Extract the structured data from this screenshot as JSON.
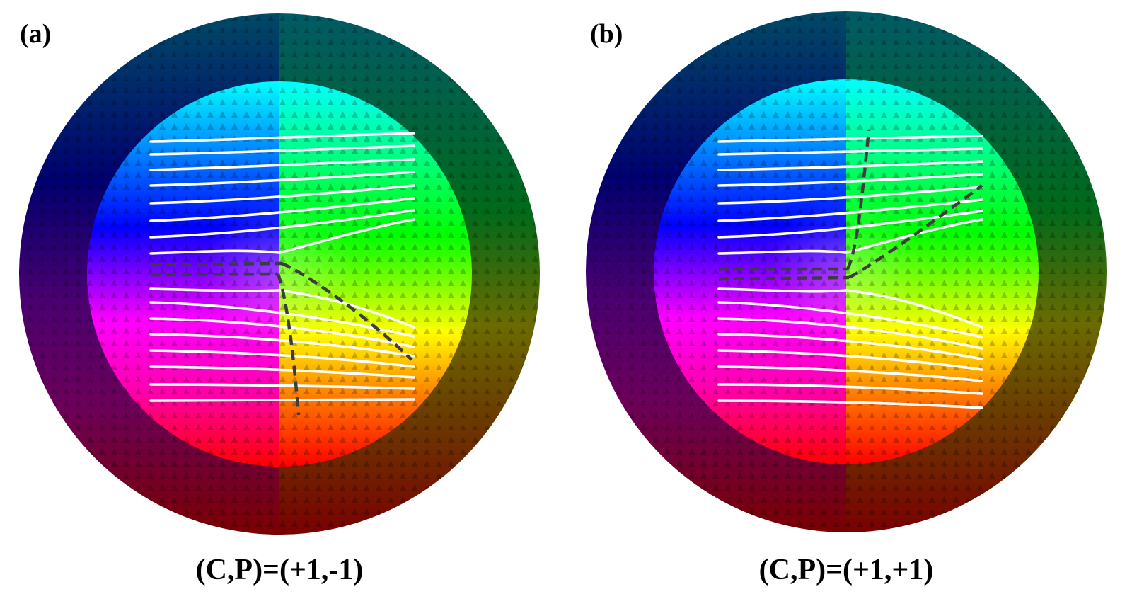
{
  "panels": [
    {
      "id": "a",
      "label": "(a)",
      "caption": "(C,P)=(+1,-1)",
      "polarity": -1
    },
    {
      "id": "b",
      "label": "(b)",
      "caption": "(C,P)=(+1,+1)",
      "polarity": 1
    }
  ],
  "colors": {
    "stripes": "#ffffff",
    "dashed_guides": "#3d3d3d",
    "arrows": "#1a1a1a"
  }
}
